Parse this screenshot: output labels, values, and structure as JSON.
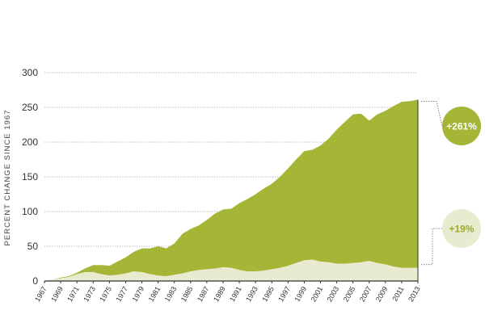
{
  "chart_data": {
    "type": "area",
    "title": "",
    "xlabel": "",
    "ylabel": "PERCENT CHANGE SINCE 1967",
    "xlim": [
      1967,
      2013
    ],
    "ylim": [
      0,
      300
    ],
    "yticks": [
      0,
      50,
      100,
      150,
      200,
      250,
      300
    ],
    "xticks": [
      1967,
      1969,
      1971,
      1973,
      1975,
      1977,
      1979,
      1981,
      1983,
      1985,
      1987,
      1989,
      1991,
      1993,
      1995,
      1997,
      1999,
      2001,
      2003,
      2005,
      2007,
      2009,
      2011,
      2013
    ],
    "grid": "horizontal",
    "x": [
      1967,
      1968,
      1969,
      1970,
      1971,
      1972,
      1973,
      1974,
      1975,
      1976,
      1977,
      1978,
      1979,
      1980,
      1981,
      1982,
      1983,
      1984,
      1985,
      1986,
      1987,
      1988,
      1989,
      1990,
      1991,
      1992,
      1993,
      1994,
      1995,
      1996,
      1997,
      1998,
      1999,
      2000,
      2001,
      2002,
      2003,
      2004,
      2005,
      2006,
      2007,
      2008,
      2009,
      2010,
      2011,
      2012,
      2013
    ],
    "series": [
      {
        "values": [
          0,
          2,
          5,
          7,
          12,
          18,
          23,
          23,
          22,
          28,
          34,
          42,
          47,
          47,
          50,
          47,
          54,
          68,
          75,
          80,
          88,
          97,
          103,
          104,
          112,
          118,
          125,
          133,
          140,
          150,
          162,
          175,
          187,
          189,
          195,
          205,
          218,
          229,
          240,
          241,
          231,
          240,
          245,
          252,
          258,
          259,
          261
        ],
        "color": "#a5b536",
        "end_label": "+261%"
      },
      {
        "values": [
          0,
          2,
          4,
          6,
          10,
          13,
          13,
          10,
          8,
          9,
          11,
          14,
          13,
          10,
          8,
          7,
          9,
          11,
          14,
          16,
          17,
          18,
          20,
          19,
          16,
          14,
          14,
          15,
          17,
          19,
          22,
          26,
          30,
          31,
          28,
          27,
          25,
          25,
          26,
          27,
          29,
          26,
          24,
          21,
          19,
          19,
          19
        ],
        "color": "#e8ebd0",
        "end_label": "+19%"
      }
    ]
  },
  "badges": {
    "top": {
      "label": "+261%",
      "bg": "#a5b536",
      "fg": "#ffffff"
    },
    "bottom": {
      "label": "+19%",
      "bg": "#e8ebd0",
      "fg": "#9aab2e"
    }
  }
}
